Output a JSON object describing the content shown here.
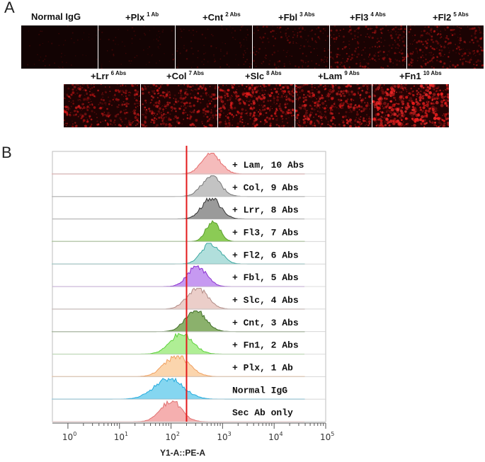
{
  "panel_a": {
    "letter": "A",
    "tiles": [
      {
        "label": "Normal IgG",
        "sup": "",
        "intensity": 0.02
      },
      {
        "label": "+Plx",
        "sup": "1 Ab",
        "intensity": 0.05
      },
      {
        "label": "+Cnt",
        "sup": "2 Abs",
        "intensity": 0.12
      },
      {
        "label": "+Fbl",
        "sup": "3 Abs",
        "intensity": 0.25
      },
      {
        "label": "+Fl3",
        "sup": "4 Abs",
        "intensity": 0.4
      },
      {
        "label": "+Fl2",
        "sup": "5 Abs",
        "intensity": 0.45
      },
      {
        "label": "+Lrr",
        "sup": "6 Abs",
        "intensity": 0.6
      },
      {
        "label": "+Col",
        "sup": "7 Abs",
        "intensity": 0.62
      },
      {
        "label": "+Slc",
        "sup": "8 Abs",
        "intensity": 0.7
      },
      {
        "label": "+Lam",
        "sup": "9 Abs",
        "intensity": 0.72
      },
      {
        "label": "+Fn1",
        "sup": "10 Abs",
        "intensity": 0.95
      }
    ]
  },
  "panel_b": {
    "letter": "B",
    "chart_data": {
      "type": "histogram",
      "title": "",
      "xlabel": "Y1-A::PE-A",
      "x_scale": "log",
      "xlim": [
        0.5,
        100000
      ],
      "x_ticks": [
        {
          "base": "10",
          "exp": "0"
        },
        {
          "base": "10",
          "exp": "1"
        },
        {
          "base": "10",
          "exp": "2"
        },
        {
          "base": "10",
          "exp": "3"
        },
        {
          "base": "10",
          "exp": "4"
        },
        {
          "base": "10",
          "exp": "5"
        }
      ],
      "threshold_x": 200,
      "threshold_color": "#e31a1c",
      "series": [
        {
          "name": "+ Lam, 10 Abs",
          "peak": 600,
          "width": 0.18,
          "fill": "#f4b4b4",
          "stroke": "#e56b6b"
        },
        {
          "name": "+ Col, 9 Abs",
          "peak": 600,
          "width": 0.18,
          "fill": "#bdbdbd",
          "stroke": "#777777"
        },
        {
          "name": "+ Lrr, 8 Abs",
          "peak": 600,
          "width": 0.18,
          "fill": "#8f8f8f",
          "stroke": "#333333"
        },
        {
          "name": "+ Fl3, 7 Abs",
          "peak": 650,
          "width": 0.13,
          "fill": "#7ec543",
          "stroke": "#5aa02c"
        },
        {
          "name": "+ Fl2, 6 Abs",
          "peak": 600,
          "width": 0.18,
          "fill": "#a8dcd8",
          "stroke": "#3aa7a0"
        },
        {
          "name": "+ Fbl, 5 Abs",
          "peak": 320,
          "width": 0.18,
          "fill": "#c08ef0",
          "stroke": "#8a2fd0"
        },
        {
          "name": "+ Slc, 4 Abs",
          "peak": 320,
          "width": 0.2,
          "fill": "#e9c9c3",
          "stroke": "#b08a84"
        },
        {
          "name": "+ Cnt, 3 Abs",
          "peak": 300,
          "width": 0.2,
          "fill": "#7ea85c",
          "stroke": "#3f6e26"
        },
        {
          "name": "+ Fn1, 2 Abs",
          "peak": 160,
          "width": 0.22,
          "fill": "#a6ec8a",
          "stroke": "#5cd13a"
        },
        {
          "name": "+ Plx, 1 Ab",
          "peak": 130,
          "width": 0.24,
          "fill": "#fbd0a4",
          "stroke": "#f0a060"
        },
        {
          "name": "Normal IgG",
          "peak": 90,
          "width": 0.28,
          "fill": "#78d2ee",
          "stroke": "#22aadd"
        },
        {
          "name": "Sec Ab only",
          "peak": 100,
          "width": 0.2,
          "fill": "#f4a6a6",
          "stroke": "#e07070"
        }
      ]
    }
  }
}
